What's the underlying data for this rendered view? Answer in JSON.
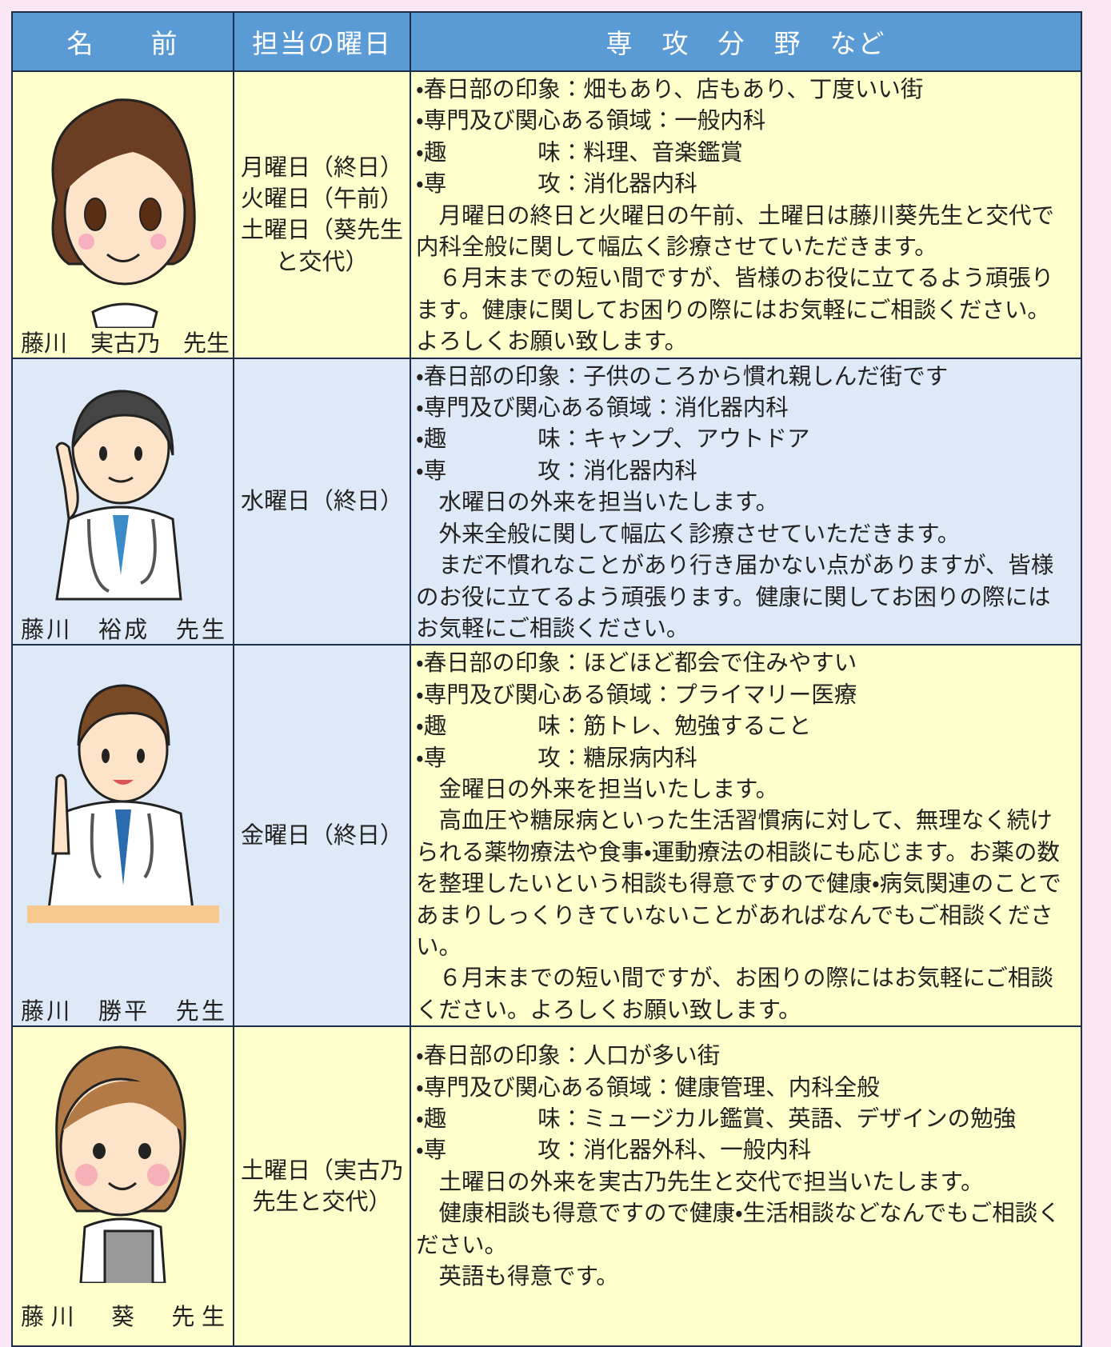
{
  "table": {
    "headers": [
      "名　　前",
      "担当の曜日",
      "専　攻　分　野　など"
    ],
    "rows": [
      {
        "name": "藤川　実古乃　先生",
        "days": [
          "月曜日（終日）",
          "火曜日（午前）",
          "土曜日（葵先生",
          "と交代）"
        ],
        "details": [
          "・春日部の印象：畑もあり、店もあり、丁度いい街",
          "・専門及び関心ある領域：一般内科",
          "・趣　　　　味：料理、音楽鑑賞",
          "・専　　　　攻：消化器内科",
          "　月曜日の終日と火曜日の午前、土曜日は藤川葵先生と交代で内科全般に関して幅広く診療させていただきます。",
          "　６月末までの短い間ですが、皆様のお役に立てるよう頑張ります。健康に関してお困りの際にはお気軽にご相談ください。よろしくお願い致します。"
        ]
      },
      {
        "name": "藤川　裕成　先生",
        "days": [
          "水曜日（終日）"
        ],
        "details": [
          "・春日部の印象：子供のころから慣れ親しんだ街です",
          "・専門及び関心ある領域：消化器内科",
          "・趣　　　　味：キャンプ、アウトドア",
          "・専　　　　攻：消化器内科",
          "　水曜日の外来を担当いたします。",
          "　外来全般に関して幅広く診療させていただきます。",
          "　まだ不慣れなことがあり行き届かない点がありますが、皆様のお役に立てるよう頑張ります。健康に関してお困りの際にはお気軽にご相談ください。"
        ]
      },
      {
        "name": "藤川　勝平　先生",
        "days": [
          "金曜日（終日）"
        ],
        "details": [
          "・春日部の印象：ほどほど都会で住みやすい",
          "・専門及び関心ある領域：プライマリー医療",
          "・趣　　　　味：筋トレ、勉強すること",
          "・専　　　　攻：糖尿病内科",
          "　金曜日の外来を担当いたします。",
          "　高血圧や糖尿病といった生活習慣病に対して、無理なく続けられる薬物療法や食事・運動療法の相談にも応じます。お薬の数を整理したいという相談も得意ですので健康・病気関連のことであまりしっくりきていないことがあればなんでもご相談ください。",
          "　６月末までの短い間ですが、お困りの際にはお気軽にご相談ください。よろしくお願い致します。"
        ]
      },
      {
        "name": "藤川　葵　先生",
        "days": [
          "土曜日（実古乃",
          "先生と交代）"
        ],
        "details": [
          "・春日部の印象：人口が多い街",
          "・専門及び関心ある領域：健康管理、内科全般",
          "・趣　　　　味：ミュージカル鑑賞、英語、デザインの勉強",
          "・専　　　　攻：消化器外科、一般内科",
          "　土曜日の外来を実古乃先生と交代で担当いたします。",
          "　健康相談も得意ですので健康・生活相談などなんでもご相談ください。",
          "　英語も得意です。"
        ]
      }
    ]
  }
}
